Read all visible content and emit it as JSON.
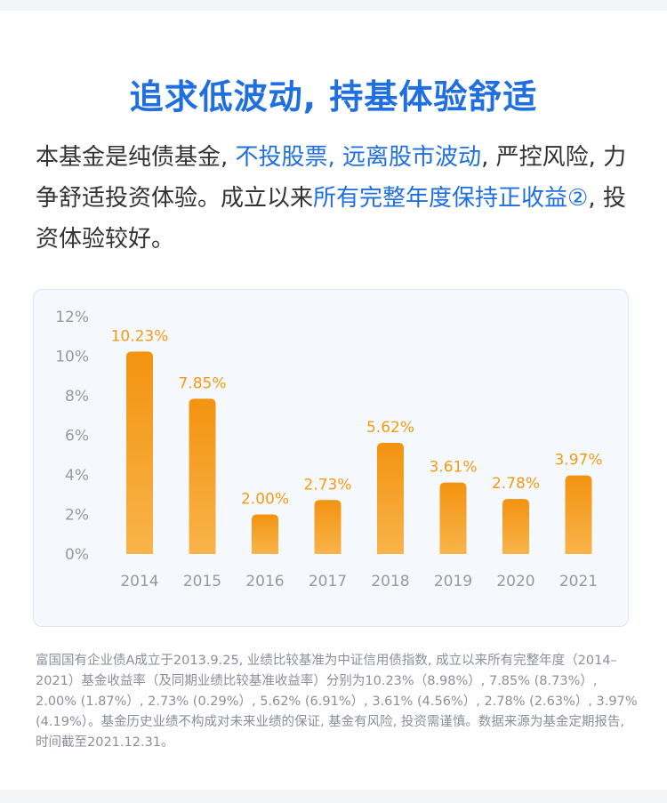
{
  "title": "追求低波动, 持基体验舒适",
  "intro": {
    "part1": "本基金是纯债基金, ",
    "part2": "不投股票, 远离股市波动",
    "part3": ", 严控风险, 力争舒适投资体验。成立以来",
    "part4": "所有完整年度保持正收益②",
    "part5": ", 投资体验较好。"
  },
  "colors": {
    "accent": "#1f6fe0",
    "bar": "#f49a14",
    "label": "#f49a14",
    "axis": "#999999"
  },
  "chart_data": {
    "type": "bar",
    "categories": [
      "2014",
      "2015",
      "2016",
      "2017",
      "2018",
      "2019",
      "2020",
      "2021"
    ],
    "values": [
      10.23,
      7.85,
      2.0,
      2.73,
      5.62,
      3.61,
      2.78,
      3.97
    ],
    "data_labels": [
      "10.23%",
      "7.85%",
      "2.00%",
      "2.73%",
      "5.62%",
      "3.61%",
      "2.78%",
      "3.97%"
    ],
    "y_ticks": [
      "0%",
      "2%",
      "4%",
      "6%",
      "8%",
      "10%",
      "12%"
    ],
    "ylim": [
      0,
      12
    ],
    "grid": false
  },
  "footnote": "富国国有企业债A成立于2013.9.25, 业绩比较基准为中证信用债指数, 成立以来所有完整年度（2014–2021）基金收益率（及同期业绩比较基准收益率）分别为10.23%（8.98%）, 7.85% (8.73%）, 2.00% (1.87%）, 2.73% (0.29%）, 5.62% (6.91%）, 3.61% (4.56%）, 2.78% (2.63%）, 3.97% (4.19%）。基金历史业绩不构成对未来业绩的保证, 基金有风险, 投资需谨慎。数据来源为基金定期报告, 时间截至2021.12.31。"
}
